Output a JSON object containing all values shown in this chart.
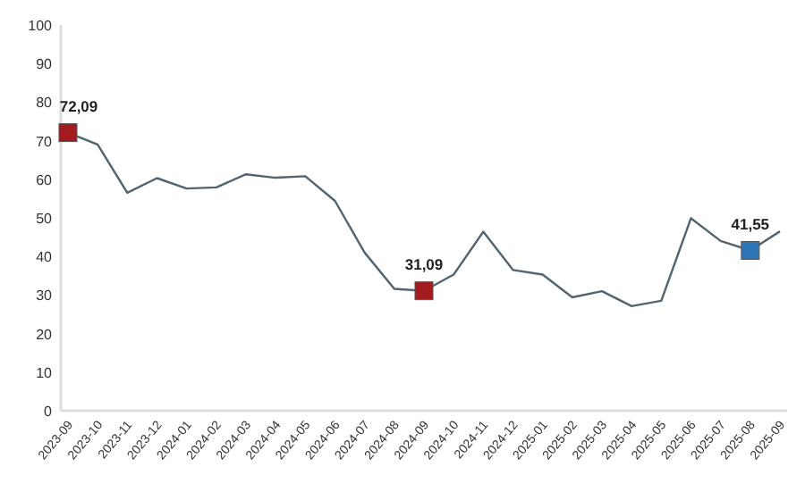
{
  "chart_data": {
    "type": "line",
    "categories": [
      "2023-09",
      "2023-10",
      "2023-11",
      "2023-12",
      "2024-01",
      "2024-02",
      "2024-03",
      "2024-04",
      "2024-05",
      "2024-06",
      "2024-07",
      "2024-08",
      "2024-09",
      "2024-10",
      "2024-11",
      "2024-12",
      "2025-01",
      "2025-02",
      "2025-03",
      "2025-04",
      "2025-05",
      "2025-06",
      "2025-07",
      "2025-08",
      "2025-09"
    ],
    "series": [
      {
        "color": "#52646f",
        "marker": "none",
        "values": [
          72.09,
          69.0,
          56.5,
          60.3,
          57.6,
          57.9,
          61.3,
          60.4,
          60.8,
          54.4,
          41.0,
          31.6,
          31.09,
          35.3,
          46.4,
          36.5,
          35.3,
          29.4,
          31.0,
          27.1,
          28.5,
          49.9,
          44.0,
          41.55,
          46.5
        ]
      },
      {
        "type": "scatter",
        "marker": "square",
        "colors": [
          "#a31a1f",
          null,
          null,
          null,
          null,
          null,
          null,
          null,
          null,
          null,
          null,
          null,
          "#a31a1f",
          null,
          null,
          null,
          null,
          null,
          null,
          null,
          null,
          null,
          null,
          "#2e75b6",
          null
        ],
        "values": [
          72.09,
          null,
          null,
          null,
          null,
          null,
          null,
          null,
          null,
          null,
          null,
          null,
          31.09,
          null,
          null,
          null,
          null,
          null,
          null,
          null,
          null,
          null,
          null,
          41.55,
          null
        ],
        "value_labels": [
          "72,09",
          null,
          null,
          null,
          null,
          null,
          null,
          null,
          null,
          null,
          null,
          null,
          "31,09",
          null,
          null,
          null,
          null,
          null,
          null,
          null,
          null,
          null,
          null,
          "41,55",
          null
        ]
      }
    ],
    "ylim": [
      0,
      100
    ],
    "yticks": [
      0,
      10,
      20,
      30,
      40,
      50,
      60,
      70,
      80,
      90,
      100
    ],
    "grid": false
  }
}
